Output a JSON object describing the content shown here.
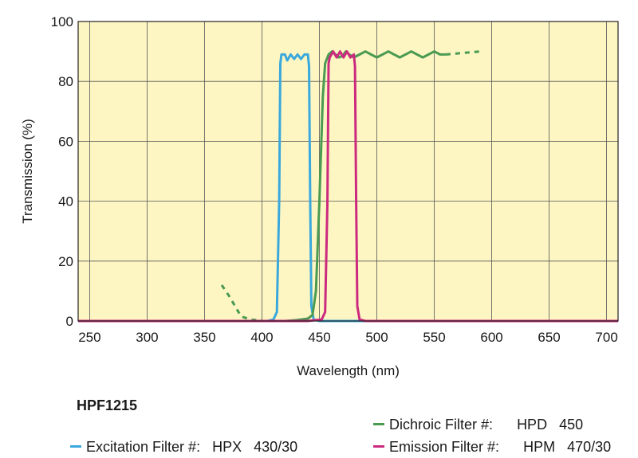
{
  "chart_data": {
    "type": "line",
    "xlabel": "Wavelength (nm)",
    "ylabel": "Transmission (%)",
    "xlim": [
      240,
      710
    ],
    "ylim": [
      0,
      100
    ],
    "x_ticks": [
      250,
      300,
      350,
      400,
      450,
      500,
      550,
      600,
      650,
      700
    ],
    "y_ticks": [
      0,
      20,
      40,
      60,
      80,
      100
    ],
    "grid": true,
    "background": "#fdf6c3",
    "series": [
      {
        "name": "Excitation Filter",
        "color": "#3aa8dc",
        "points": [
          [
            240,
            0
          ],
          [
            405,
            0
          ],
          [
            410,
            0.5
          ],
          [
            413,
            3
          ],
          [
            415,
            40
          ],
          [
            416,
            86
          ],
          [
            417,
            89
          ],
          [
            420,
            89
          ],
          [
            422,
            87
          ],
          [
            425,
            89
          ],
          [
            428,
            87.5
          ],
          [
            431,
            89
          ],
          [
            434,
            87.5
          ],
          [
            437,
            89
          ],
          [
            440,
            89
          ],
          [
            441,
            85
          ],
          [
            442,
            40
          ],
          [
            443,
            5
          ],
          [
            445,
            0.5
          ],
          [
            450,
            0
          ],
          [
            710,
            0
          ]
        ]
      },
      {
        "name": "Dichroic Filter",
        "color": "#4a9a52",
        "solid": [
          [
            240,
            0
          ],
          [
            380,
            0
          ],
          [
            390,
            0
          ],
          [
            400,
            0
          ],
          [
            420,
            0
          ],
          [
            430,
            0.3
          ],
          [
            440,
            0.8
          ],
          [
            444,
            2
          ],
          [
            447,
            10
          ],
          [
            450,
            40
          ],
          [
            453,
            75
          ],
          [
            455,
            86
          ],
          [
            458,
            89
          ],
          [
            461,
            90
          ],
          [
            464,
            89
          ],
          [
            467,
            88
          ],
          [
            470,
            88.5
          ],
          [
            473,
            90
          ],
          [
            476,
            89
          ],
          [
            480,
            88
          ],
          [
            485,
            89
          ],
          [
            490,
            90
          ],
          [
            495,
            89
          ],
          [
            500,
            88
          ],
          [
            505,
            89
          ],
          [
            510,
            90
          ],
          [
            515,
            89
          ],
          [
            520,
            88
          ],
          [
            525,
            89
          ],
          [
            530,
            90
          ],
          [
            535,
            89
          ],
          [
            540,
            88
          ],
          [
            545,
            89
          ],
          [
            550,
            90
          ],
          [
            555,
            89
          ],
          [
            560,
            89
          ]
        ],
        "dashed": [
          [
            365,
            12
          ],
          [
            372,
            8
          ],
          [
            378,
            4
          ],
          [
            382,
            1.5
          ],
          [
            390,
            0.5
          ],
          [
            395,
            0.3
          ],
          [
            400,
            0.3
          ]
        ],
        "dashed_tail": [
          [
            560,
            89
          ],
          [
            575,
            89.5
          ],
          [
            590,
            90
          ]
        ]
      },
      {
        "name": "Emission Filter",
        "color": "#cc2a7e",
        "points": [
          [
            240,
            0
          ],
          [
            440,
            0
          ],
          [
            452,
            0.5
          ],
          [
            455,
            3
          ],
          [
            457,
            40
          ],
          [
            458,
            86
          ],
          [
            459,
            88
          ],
          [
            462,
            90
          ],
          [
            465,
            88
          ],
          [
            468,
            90
          ],
          [
            471,
            88
          ],
          [
            474,
            90
          ],
          [
            477,
            88
          ],
          [
            480,
            89
          ],
          [
            481,
            85
          ],
          [
            482,
            40
          ],
          [
            483,
            5
          ],
          [
            485,
            0.5
          ],
          [
            490,
            0
          ],
          [
            710,
            0
          ]
        ]
      }
    ]
  },
  "legend": {
    "title": "HPF1215",
    "items": [
      {
        "label": "Excitation Filter #:",
        "code": "HPX   430/30",
        "color": "#3aa8dc"
      },
      {
        "label": "Dichroic Filter #:",
        "code": "HPD   450",
        "color": "#4a9a52"
      },
      {
        "label": "Emission Filter #:",
        "code": "HPM   470/30",
        "color": "#cc2a7e"
      }
    ]
  }
}
